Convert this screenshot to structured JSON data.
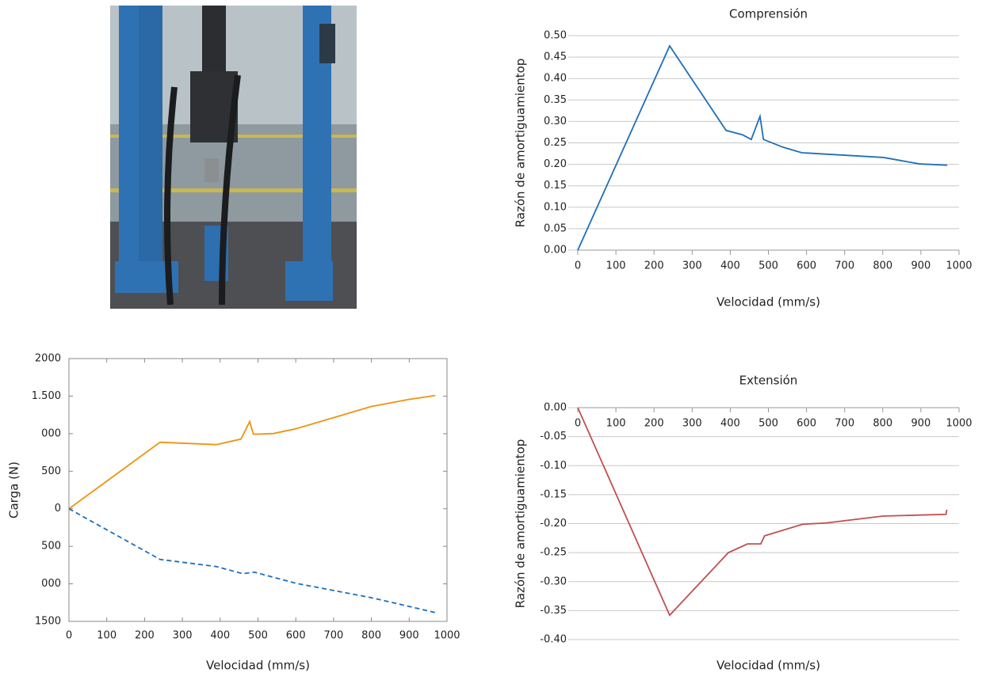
{
  "chart_data": [
    {
      "type": "line",
      "title": "Comprensión",
      "x_label": "Velocidad (mm/s)",
      "y_label": "Razón de amortiguamientop",
      "xlim": [
        0,
        1000
      ],
      "xticks": [
        0,
        100,
        200,
        300,
        400,
        500,
        600,
        700,
        800,
        900,
        1000
      ],
      "ylim": [
        0,
        0.5
      ],
      "yticks": [
        {
          "value": 0,
          "label": "0.00"
        },
        {
          "value": 0.05,
          "label": "0.05"
        },
        {
          "value": 0.1,
          "label": "0.10"
        },
        {
          "value": 0.15,
          "label": "0.15"
        },
        {
          "value": 0.2,
          "label": "0.20"
        },
        {
          "value": 0.25,
          "label": "0.25"
        },
        {
          "value": 0.3,
          "label": "0.30"
        },
        {
          "value": 0.35,
          "label": "0.35"
        },
        {
          "value": 0.4,
          "label": "0.40"
        },
        {
          "value": 0.45,
          "label": "0.45"
        },
        {
          "value": 0.5,
          "label": "0.50"
        }
      ],
      "grid": true,
      "frame": false,
      "x_axis_at_zero": false,
      "series": [
        {
          "color": "#1f6fb8",
          "dashed": false,
          "x": [
            0,
            241,
            389,
            432,
            455,
            478,
            487,
            538,
            588,
            802,
            896,
            969
          ],
          "values": [
            0,
            0.476,
            0.279,
            0.269,
            0.258,
            0.312,
            0.258,
            0.24,
            0.227,
            0.216,
            0.201,
            0.198
          ]
        }
      ]
    },
    {
      "type": "line",
      "x_label": "Velocidad (mm/s)",
      "y_label": "Carga (N)",
      "xlim": [
        0,
        1000
      ],
      "xticks": [
        0,
        100,
        200,
        300,
        400,
        500,
        600,
        700,
        800,
        900,
        1000
      ],
      "ylim": [
        -1500,
        2000
      ],
      "yticks": [
        {
          "value": -1500,
          "label": "1500"
        },
        {
          "value": -1000,
          "label": "000"
        },
        {
          "value": -500,
          "label": "500"
        },
        0,
        500,
        {
          "value": 1000,
          "label": "000"
        },
        {
          "value": 1500,
          "label": "1.500"
        },
        2000
      ],
      "grid": false,
      "frame": true,
      "x_axis_at_zero": false,
      "series": [
        {
          "color": "#f0920e",
          "dashed": false,
          "x": [
            0,
            241,
            390,
            455,
            478,
            488,
            541,
            600,
            799,
            899,
            969
          ],
          "values": [
            0,
            886,
            854,
            928,
            1160,
            992,
            1002,
            1065,
            1361,
            1456,
            1508
          ]
        },
        {
          "color": "#1f6fb8",
          "dashed": true,
          "x": [
            0,
            241,
            390,
            460,
            490,
            600,
            800,
            969
          ],
          "values": [
            0,
            -675,
            -770,
            -865,
            -844,
            -992,
            -1185,
            -1382
          ]
        }
      ]
    },
    {
      "type": "line",
      "title": "Extensión",
      "x_label": "Velocidad (mm/s)",
      "y_label": "Razón de amortiguamientop",
      "xlim": [
        0,
        1000
      ],
      "xticks": [
        0,
        100,
        200,
        300,
        400,
        500,
        600,
        700,
        800,
        900,
        1000
      ],
      "ylim": [
        -0.4,
        0
      ],
      "yticks": [
        {
          "value": -0.4,
          "label": "-0.40"
        },
        {
          "value": -0.35,
          "label": "-0.35"
        },
        {
          "value": -0.3,
          "label": "-0.30"
        },
        {
          "value": -0.25,
          "label": "-0.25"
        },
        {
          "value": -0.2,
          "label": "-0.20"
        },
        {
          "value": -0.15,
          "label": "-0.15"
        },
        {
          "value": -0.1,
          "label": "-0.10"
        },
        {
          "value": -0.05,
          "label": "-0.05"
        },
        {
          "value": 0,
          "label": "0.00"
        }
      ],
      "grid": true,
      "frame": false,
      "x_axis_at_zero": true,
      "series": [
        {
          "color": "#c0504d",
          "dashed": false,
          "x": [
            0,
            241,
            395,
            445,
            480,
            490,
            590,
            650,
            800,
            966,
            968
          ],
          "values": [
            0,
            -0.358,
            -0.25,
            -0.235,
            -0.235,
            -0.221,
            -0.201,
            -0.199,
            -0.187,
            -0.184,
            -0.176
          ]
        }
      ]
    }
  ]
}
